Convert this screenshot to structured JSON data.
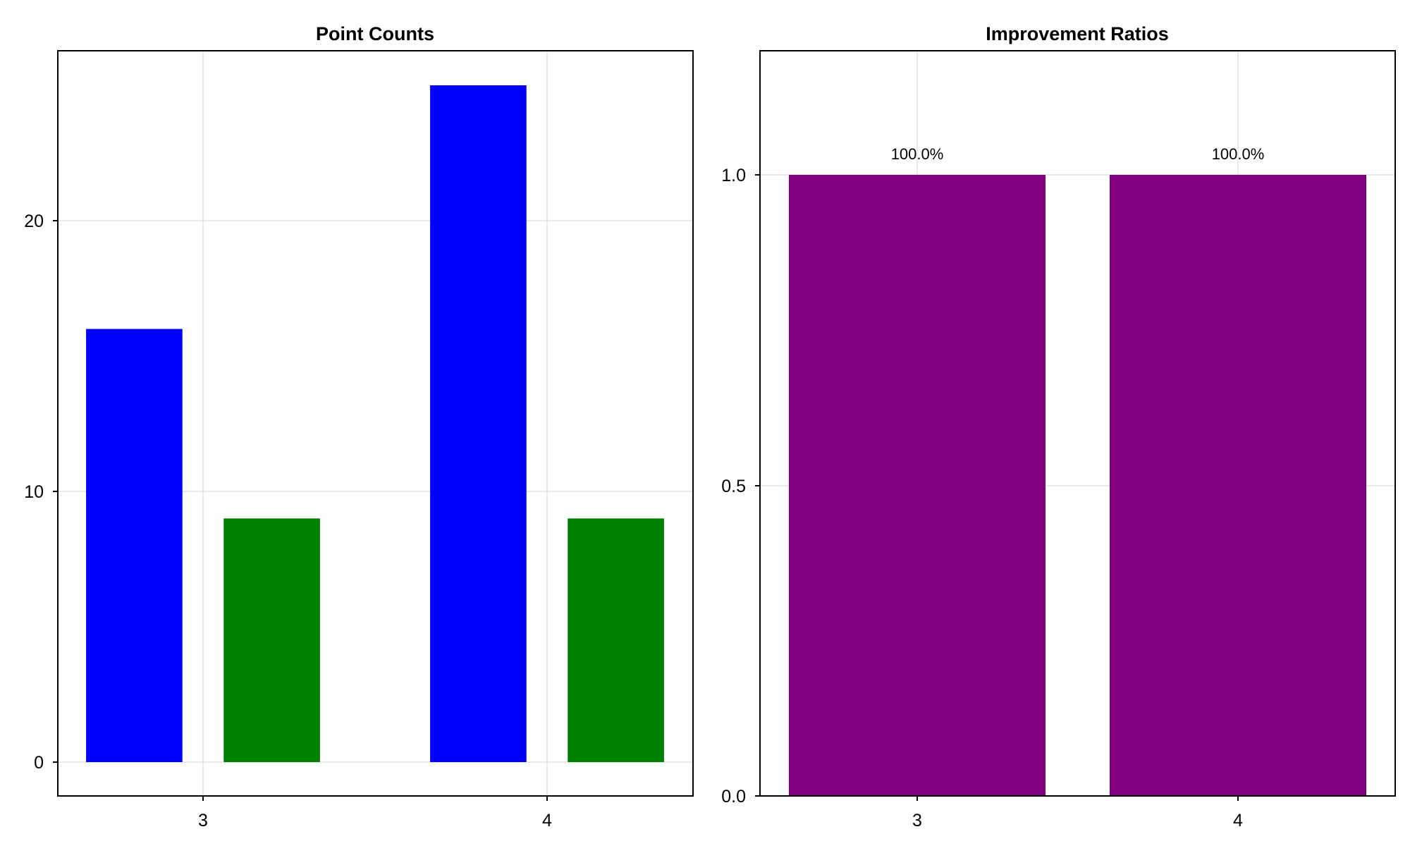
{
  "chart_data": [
    {
      "type": "bar",
      "title": "Point Counts",
      "xlabel": "",
      "ylabel": "",
      "x_ticks": [
        "3",
        "4"
      ],
      "y_ticks": [
        0,
        10,
        20
      ],
      "ylim": [
        -1.25,
        26.25
      ],
      "grid": true,
      "series": [
        {
          "color": "#0000ff",
          "x": [
            2.8,
            3.8
          ],
          "values": [
            16,
            25
          ]
        },
        {
          "color": "#008000",
          "x": [
            3.2,
            4.2
          ],
          "values": [
            9,
            9
          ]
        }
      ]
    },
    {
      "type": "bar",
      "title": "Improvement Ratios",
      "xlabel": "",
      "ylabel": "",
      "x_ticks": [
        "3",
        "4"
      ],
      "y_ticks": [
        "0.0",
        "0.5",
        "1.0"
      ],
      "ylim": [
        0,
        1.2
      ],
      "grid": true,
      "series": [
        {
          "color": "#800080",
          "x": [
            3,
            4
          ],
          "values": [
            1.0,
            1.0
          ],
          "data_labels": [
            "100.0%",
            "100.0%"
          ]
        }
      ]
    }
  ]
}
